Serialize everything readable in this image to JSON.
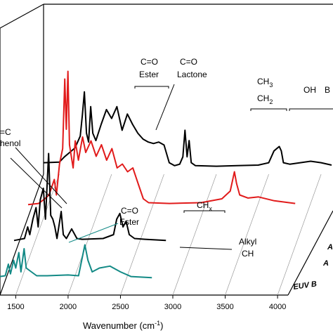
{
  "chart_data": {
    "type": "line",
    "title": "",
    "xlabel": "Wavenumber (cm",
    "xlabel_sup": "-1",
    "xlabel_close": ")",
    "ylabel": "",
    "xlim": [
      1350,
      4100
    ],
    "x_ticks": [
      "1500",
      "2000",
      "2500",
      "3000",
      "3500",
      "4000"
    ],
    "x_tick_values": [
      1500,
      2000,
      2500,
      3000,
      3500,
      4000
    ],
    "depth_labels": [
      "EUV B",
      "A",
      "A"
    ],
    "annotations": {
      "co_ester_top": [
        "C=O",
        "Ester"
      ],
      "co_lactone": [
        "C=O",
        "Lactone"
      ],
      "ch3": "CH",
      "ch3_sub": "3",
      "ch2": "CH",
      "ch2_sub": "2",
      "oh": "OH",
      "oh_trail": "B",
      "cc": "=C",
      "phenol": "henol",
      "chx": "CH",
      "chx_sub": "x",
      "co_ester_bottom": [
        "C=O",
        "Ester"
      ],
      "alkyl": "Alkyl",
      "ch": "CH"
    },
    "colors": {
      "back_black": "#000000",
      "red": "#e11b1b",
      "front_black": "#000000",
      "teal": "#138a86"
    },
    "series": [
      {
        "color": "#000000",
        "points": [
          [
            1350,
            20
          ],
          [
            1500,
            22
          ],
          [
            1550,
            40
          ],
          [
            1600,
            55
          ],
          [
            1650,
            70
          ],
          [
            1700,
            110
          ],
          [
            1720,
            180
          ],
          [
            1740,
            260
          ],
          [
            1760,
            120
          ],
          [
            1780,
            90
          ],
          [
            1800,
            210
          ],
          [
            1820,
            120
          ],
          [
            1850,
            95
          ],
          [
            1900,
            150
          ],
          [
            1950,
            200
          ],
          [
            2000,
            170
          ],
          [
            2050,
            210
          ],
          [
            2100,
            130
          ],
          [
            2150,
            185
          ],
          [
            2200,
            150
          ],
          [
            2250,
            120
          ],
          [
            2300,
            100
          ],
          [
            2350,
            90
          ],
          [
            2400,
            85
          ],
          [
            2450,
            90
          ],
          [
            2500,
            80
          ],
          [
            2550,
            20
          ],
          [
            2600,
            10
          ],
          [
            2650,
            15
          ],
          [
            2680,
            40
          ],
          [
            2700,
            130
          ],
          [
            2720,
            40
          ],
          [
            2740,
            95
          ],
          [
            2760,
            20
          ],
          [
            2800,
            10
          ],
          [
            3000,
            8
          ],
          [
            3200,
            10
          ],
          [
            3400,
            12
          ],
          [
            3500,
            20
          ],
          [
            3550,
            60
          ],
          [
            3600,
            75
          ],
          [
            3620,
            60
          ],
          [
            3640,
            20
          ],
          [
            3700,
            15
          ],
          [
            3900,
            25
          ],
          [
            4000,
            20
          ],
          [
            4100,
            12
          ]
        ]
      },
      {
        "color": "#e11b1b",
        "points": [
          [
            1350,
            5
          ],
          [
            1450,
            8
          ],
          [
            1500,
            18
          ],
          [
            1550,
            30
          ],
          [
            1600,
            70
          ],
          [
            1620,
            30
          ],
          [
            1650,
            110
          ],
          [
            1680,
            150
          ],
          [
            1700,
            330
          ],
          [
            1715,
            200
          ],
          [
            1730,
            350
          ],
          [
            1745,
            160
          ],
          [
            1780,
            100
          ],
          [
            1800,
            170
          ],
          [
            1830,
            120
          ],
          [
            1870,
            180
          ],
          [
            1900,
            140
          ],
          [
            1950,
            170
          ],
          [
            2000,
            130
          ],
          [
            2050,
            160
          ],
          [
            2100,
            120
          ],
          [
            2150,
            150
          ],
          [
            2200,
            100
          ],
          [
            2250,
            110
          ],
          [
            2300,
            90
          ],
          [
            2350,
            100
          ],
          [
            2400,
            60
          ],
          [
            2450,
            20
          ],
          [
            2500,
            10
          ],
          [
            2700,
            8
          ],
          [
            3000,
            10
          ],
          [
            3200,
            20
          ],
          [
            3280,
            40
          ],
          [
            3320,
            90
          ],
          [
            3340,
            60
          ],
          [
            3370,
            30
          ],
          [
            3450,
            22
          ],
          [
            3550,
            25
          ],
          [
            3700,
            15
          ],
          [
            3900,
            8
          ]
        ]
      },
      {
        "color": "#000000",
        "points": [
          [
            1350,
            5
          ],
          [
            1450,
            10
          ],
          [
            1480,
            40
          ],
          [
            1500,
            20
          ],
          [
            1530,
            60
          ],
          [
            1560,
            90
          ],
          [
            1580,
            40
          ],
          [
            1600,
            110
          ],
          [
            1630,
            140
          ],
          [
            1650,
            60
          ],
          [
            1680,
            230
          ],
          [
            1700,
            70
          ],
          [
            1720,
            60
          ],
          [
            1740,
            40
          ],
          [
            1760,
            10
          ],
          [
            1800,
            80
          ],
          [
            1820,
            20
          ],
          [
            1850,
            10
          ],
          [
            1900,
            35
          ],
          [
            1950,
            10
          ],
          [
            2000,
            8
          ],
          [
            2200,
            10
          ],
          [
            2300,
            20
          ],
          [
            2330,
            60
          ],
          [
            2360,
            75
          ],
          [
            2390,
            40
          ],
          [
            2420,
            55
          ],
          [
            2450,
            20
          ],
          [
            2500,
            10
          ],
          [
            2600,
            8
          ],
          [
            2800,
            5
          ]
        ]
      },
      {
        "color": "#138a86",
        "points": [
          [
            1350,
            8
          ],
          [
            1400,
            10
          ],
          [
            1430,
            40
          ],
          [
            1450,
            15
          ],
          [
            1480,
            50
          ],
          [
            1500,
            30
          ],
          [
            1530,
            70
          ],
          [
            1550,
            20
          ],
          [
            1580,
            80
          ],
          [
            1600,
            30
          ],
          [
            1650,
            20
          ],
          [
            1700,
            10
          ],
          [
            1800,
            10
          ],
          [
            2000,
            12
          ],
          [
            2100,
            10
          ],
          [
            2130,
            50
          ],
          [
            2160,
            90
          ],
          [
            2190,
            50
          ],
          [
            2230,
            20
          ],
          [
            2300,
            30
          ],
          [
            2400,
            35
          ],
          [
            2500,
            20
          ],
          [
            2600,
            8
          ],
          [
            2800,
            5
          ]
        ]
      }
    ]
  }
}
